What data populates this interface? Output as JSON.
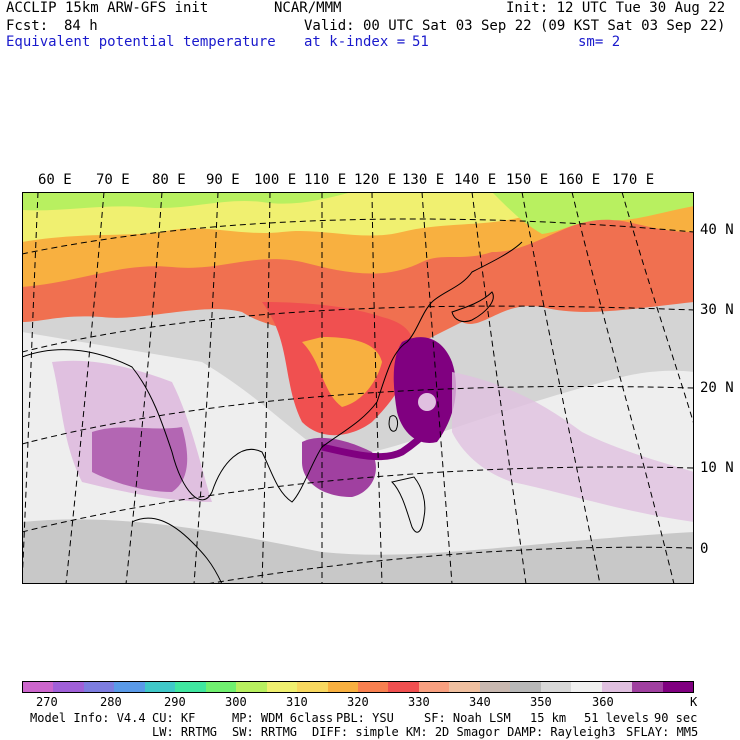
{
  "header": {
    "model": "ACCLIP 15km ARW-GFS init",
    "org": "NCAR/MMM",
    "init": "Init: 12 UTC Tue 30 Aug 22",
    "fcst_label": "Fcst:",
    "fcst_value": "84 h",
    "valid": "Valid: 00 UTC Sat 03 Sep 22 (09 KST Sat 03 Sep 22)",
    "field": "Equivalent potential temperature",
    "level": "at k-index =",
    "level_value": "51",
    "smoothing": "sm= 2"
  },
  "lon_labels": [
    "60 E",
    "70 E",
    "80 E",
    "90 E",
    "100 E",
    "110 E",
    "120 E",
    "130 E",
    "140 E",
    "150 E",
    "160 E",
    "170 E"
  ],
  "lat_labels": [
    "40 N",
    "30 N",
    "20 N",
    "10 N",
    "0"
  ],
  "colorbar": {
    "colors": [
      "#cc66cc",
      "#a060d8",
      "#7d7de0",
      "#5a9ae8",
      "#40c8c8",
      "#40e6a0",
      "#70f070",
      "#b8f060",
      "#f0f070",
      "#f8d860",
      "#f8b040",
      "#f88050",
      "#f05050",
      "#f8a080",
      "#f0c0a0",
      "#c8b8b0",
      "#b8b8b8",
      "#d8d8d8",
      "#f0f0f0",
      "#e0c0e0",
      "#a040a0",
      "#800080"
    ],
    "tick_labels": [
      "270",
      "280",
      "290",
      "300",
      "310",
      "320",
      "330",
      "340",
      "350",
      "360"
    ],
    "unit": "K"
  },
  "footer": {
    "model_info": "Model Info: V4.4",
    "cu": "CU: KF",
    "mp": "MP: WDM 6class",
    "pbl": "PBL: YSU",
    "sf": "SF: Noah LSM",
    "res": "15 km",
    "levels": "51 levels",
    "dt": "90 sec",
    "lw": "LW: RRTMG",
    "sw": "SW: RRTMG",
    "diff": "DIFF: simple KM: 2D Smagor DAMP: Rayleigh3",
    "sflay": "SFLAY: MM5"
  }
}
